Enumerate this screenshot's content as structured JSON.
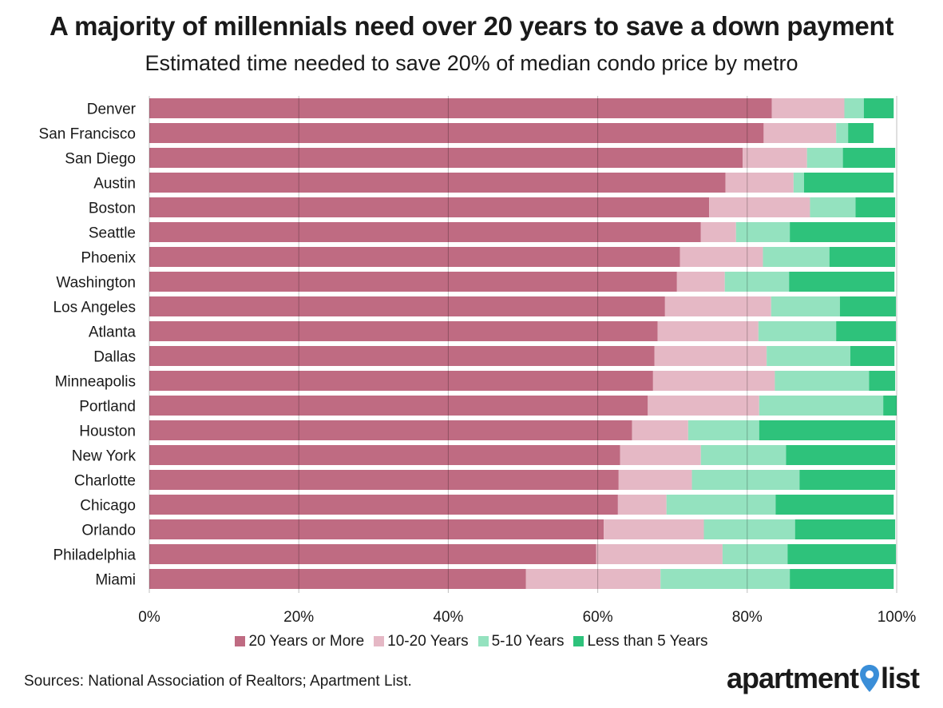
{
  "chart_data": {
    "type": "bar",
    "orientation": "horizontal",
    "stacked": true,
    "title": "A majority of millennials need over 20 years to save a down payment",
    "subtitle": "Estimated time needed to save 20% of median condo price by metro",
    "categories": [
      "Denver",
      "San Francisco",
      "San Diego",
      "Austin",
      "Boston",
      "Seattle",
      "Phoenix",
      "Washington",
      "Los Angeles",
      "Atlanta",
      "Dallas",
      "Minneapolis",
      "Portland",
      "Houston",
      "New York",
      "Charlotte",
      "Chicago",
      "Orlando",
      "Philadelphia",
      "Miami"
    ],
    "series": [
      {
        "name": "20 Years or More",
        "color": "#bf6b82",
        "values": [
          83.3,
          82.2,
          79.4,
          77.1,
          74.9,
          73.8,
          71.0,
          70.6,
          69.0,
          68.0,
          67.6,
          67.4,
          66.7,
          64.6,
          63.0,
          62.8,
          62.7,
          60.8,
          59.8,
          50.4
        ]
      },
      {
        "name": "10-20 Years",
        "color": "#e5b8c5",
        "values": [
          9.7,
          9.7,
          8.6,
          9.1,
          13.5,
          4.7,
          11.1,
          6.4,
          14.2,
          13.5,
          15.0,
          16.3,
          14.9,
          7.5,
          10.8,
          9.8,
          6.5,
          13.4,
          16.9,
          18.0
        ]
      },
      {
        "name": "5-10 Years",
        "color": "#94e2bf",
        "values": [
          2.6,
          1.6,
          4.8,
          1.4,
          6.1,
          7.2,
          8.9,
          8.6,
          9.2,
          10.4,
          11.2,
          12.6,
          16.6,
          9.5,
          11.4,
          14.4,
          14.6,
          12.2,
          8.7,
          17.3
        ]
      },
      {
        "name": "Less than 5 Years",
        "color": "#2ec27b",
        "values": [
          4.0,
          3.4,
          7.0,
          12.0,
          5.3,
          14.1,
          8.8,
          14.1,
          7.5,
          8.0,
          5.9,
          3.5,
          1.8,
          18.2,
          14.6,
          12.8,
          15.8,
          13.4,
          14.5,
          13.9
        ]
      }
    ],
    "xaxis": {
      "ticks": [
        "0%",
        "20%",
        "40%",
        "60%",
        "80%",
        "100%"
      ],
      "range": [
        0,
        100
      ]
    },
    "grid": true,
    "legend_position": "bottom"
  },
  "source": "Sources: National Association of Realtors; Apartment List.",
  "logo": {
    "left": "apartment",
    "right": "list",
    "pin_color": "#3a8ed8"
  }
}
